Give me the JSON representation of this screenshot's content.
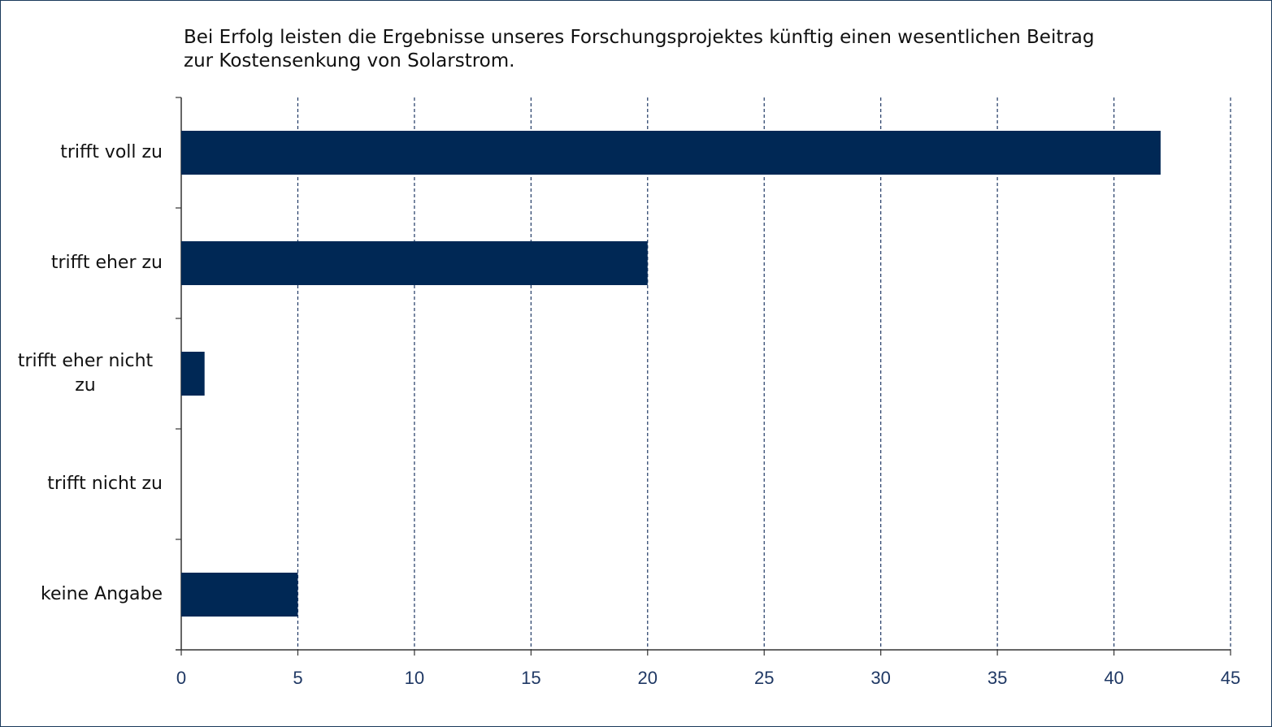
{
  "chart_data": {
    "type": "bar",
    "orientation": "horizontal",
    "title": "Bei Erfolg leisten die Ergebnisse unseres Forschungsprojektes künftig einen wesentlichen Beitrag zur Kostensenkung von Solarstrom.",
    "categories": [
      "trifft voll zu",
      "trifft eher zu",
      "trifft eher nicht zu",
      "trifft nicht zu",
      "keine Angabe"
    ],
    "values": [
      42,
      20,
      1,
      0,
      5
    ],
    "color": "#002855",
    "xlim": [
      0,
      45
    ],
    "xticks": [
      0,
      5,
      10,
      15,
      20,
      25,
      30,
      35,
      40,
      45
    ],
    "grid": true
  }
}
